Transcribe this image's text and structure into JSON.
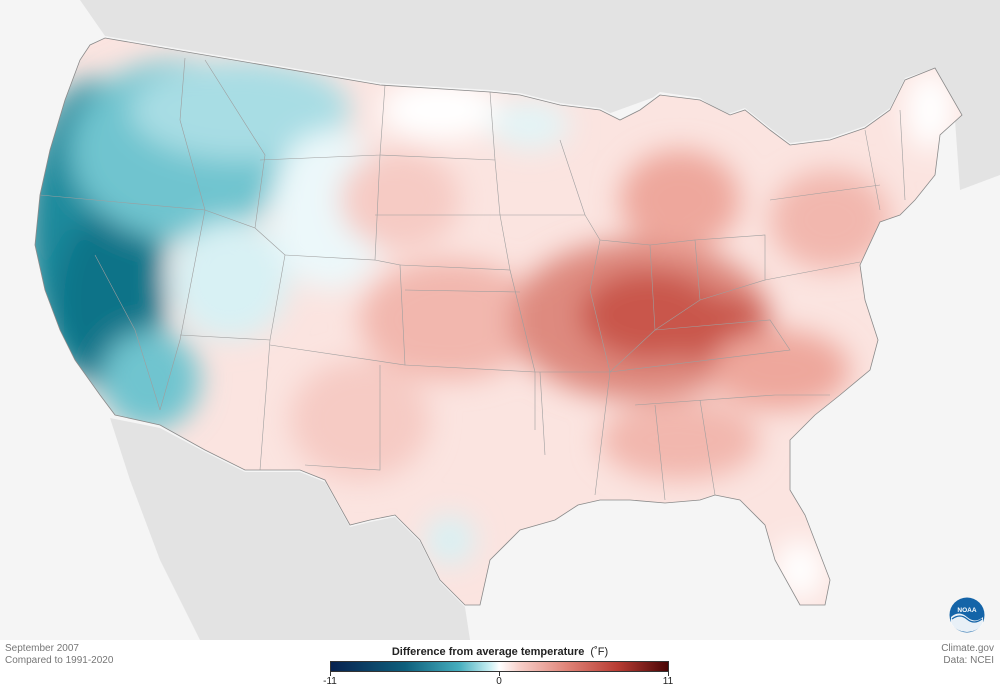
{
  "footer": {
    "date": "September 2007",
    "baseline": "Compared to 1991-2020",
    "source_site": "Climate.gov",
    "data_source": "Data: NCEI"
  },
  "legend": {
    "title": "Difference from average temperature",
    "unit": "(˚F)",
    "min_label": "-11",
    "mid_label": "0",
    "max_label": "11",
    "min_value": -11,
    "max_value": 11
  },
  "logo": {
    "text": "NOAA",
    "icon": "noaa-logo-icon"
  },
  "colors": {
    "cold_extreme": "#08224f",
    "cold": "#46aebe",
    "neutral": "#ffffff",
    "warm": "#e08478",
    "warm_extreme": "#4a0606",
    "land_background": "#e0e0e0",
    "water_background": "#f5f5f5"
  }
}
